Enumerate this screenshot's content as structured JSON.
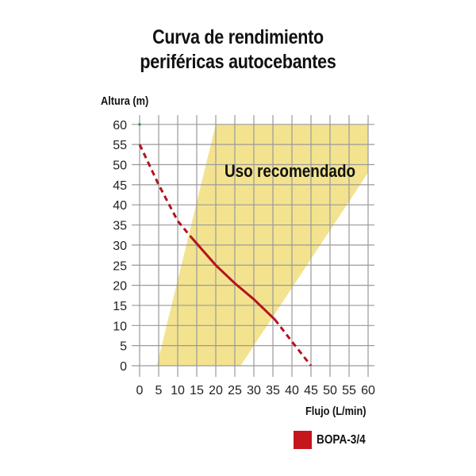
{
  "title": {
    "line1": "Curva de rendimiento",
    "line2": "periféricas autocebantes"
  },
  "axes": {
    "ylabel": "Altura (m)",
    "xlabel": "Flujo (L/min)",
    "yticks": [
      "0",
      "5",
      "10",
      "15",
      "20",
      "25",
      "30",
      "35",
      "40",
      "45",
      "50",
      "55",
      "60"
    ],
    "xticks": [
      "0",
      "5",
      "10",
      "15",
      "20",
      "25",
      "30",
      "35",
      "40",
      "45",
      "50",
      "55",
      "60"
    ]
  },
  "region_label": "Uso recomendado",
  "legend": {
    "label": "BOPA-3/4",
    "color": "#c4161c"
  },
  "colors": {
    "region": "#f3e38f",
    "curve": "#b3141f",
    "grid": "#9a9a9a"
  },
  "chart_data": {
    "type": "line",
    "title": "Curva de rendimiento periféricas autocebantes",
    "xlabel": "Flujo (L/min)",
    "ylabel": "Altura (m)",
    "xlim": [
      0,
      60
    ],
    "ylim": [
      0,
      60
    ],
    "grid": true,
    "legend_position": "bottom-right",
    "series": [
      {
        "name": "BOPA-3/4",
        "x": [
          0,
          5,
          10,
          13.5,
          20,
          25,
          30,
          35.5,
          40,
          45
        ],
        "y": [
          55,
          45,
          36,
          32,
          25,
          20.5,
          16.5,
          11.5,
          6,
          0
        ],
        "solid_range_x": [
          13.5,
          35.5
        ],
        "dashed_outside_range": true
      }
    ],
    "annotations": [
      {
        "text": "Uso recomendado",
        "type": "shaded_region",
        "polygon": [
          [
            4.5,
            0
          ],
          [
            20,
            60
          ],
          [
            60,
            60
          ],
          [
            60,
            48
          ],
          [
            26.5,
            0
          ]
        ]
      }
    ]
  }
}
